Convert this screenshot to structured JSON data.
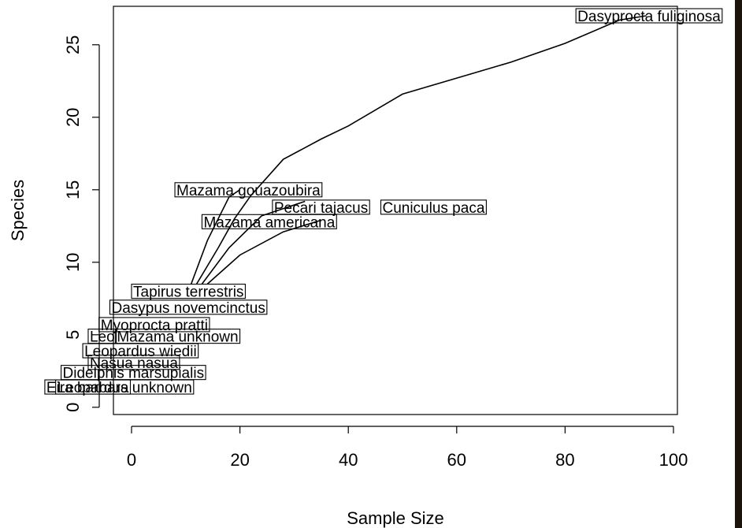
{
  "chart_data": {
    "type": "line",
    "title": "",
    "xlabel": "Sample Size",
    "ylabel": "Species",
    "xlim": [
      -3,
      100
    ],
    "ylim": [
      -0.5,
      28.5
    ],
    "x_ticks": [
      "0",
      "20",
      "40",
      "60",
      "80",
      "100"
    ],
    "y_ticks": [
      "0",
      "5",
      "10",
      "15",
      "20",
      "25"
    ],
    "x_tick_values": [
      0,
      20,
      40,
      60,
      80,
      100
    ],
    "y_tick_values": [
      0,
      5,
      10,
      15,
      20,
      25
    ],
    "grid": false,
    "series": [
      {
        "values": [
          [
            11,
            8.5
          ],
          [
            14,
            11.5
          ],
          [
            18,
            14.5
          ],
          [
            20,
            15
          ]
        ]
      },
      {
        "values": [
          [
            12,
            8.5
          ],
          [
            16,
            11
          ],
          [
            19,
            13
          ],
          [
            22,
            14.6
          ],
          [
            28,
            17.1
          ],
          [
            35,
            18.5
          ],
          [
            40,
            19.4
          ],
          [
            50,
            21.6
          ],
          [
            60,
            22.7
          ],
          [
            70,
            23.8
          ],
          [
            80,
            25.1
          ],
          [
            90,
            26.7
          ],
          [
            95,
            27
          ]
        ]
      },
      {
        "values": [
          [
            13,
            8.5
          ],
          [
            18,
            11
          ],
          [
            24,
            13.2
          ],
          [
            32,
            14.2
          ]
        ]
      },
      {
        "values": [
          [
            14,
            8.5
          ],
          [
            20,
            10.5
          ],
          [
            28,
            12.1
          ],
          [
            35,
            12.9
          ]
        ]
      }
    ],
    "annotations": [
      {
        "text": "Dasyprocta fuliginosa",
        "x": 82,
        "y": 27
      },
      {
        "text": "Mazama gouazoubira",
        "x": 8,
        "y": 15
      },
      {
        "text": "Pecari tajacus",
        "x": 26,
        "y": 13.8
      },
      {
        "text": "Cuniculus paca",
        "x": 46,
        "y": 13.8
      },
      {
        "text": "Mazama americana",
        "x": 13,
        "y": 12.8
      },
      {
        "text": "Tapirus terrestris",
        "x": 0,
        "y": 8
      },
      {
        "text": "Dasypus novemcinctus",
        "x": -4,
        "y": 6.9
      },
      {
        "text": "Myoprocta pratti",
        "x": -6,
        "y": 5.7
      },
      {
        "text": "Leo",
        "x": -8,
        "y": 4.9
      },
      {
        "text": "Mazama unknown",
        "x": -3,
        "y": 4.9
      },
      {
        "text": "Leopardus wiedii",
        "x": -9,
        "y": 3.9
      },
      {
        "text": "Nasua nasua",
        "x": -8,
        "y": 3.1
      },
      {
        "text": "Didelphis marsupialis",
        "x": -13,
        "y": 2.4
      },
      {
        "text": "Eira barbara",
        "x": -16,
        "y": 1.4
      },
      {
        "text": "Leopardus unknown",
        "x": -14,
        "y": 1.4
      }
    ]
  }
}
